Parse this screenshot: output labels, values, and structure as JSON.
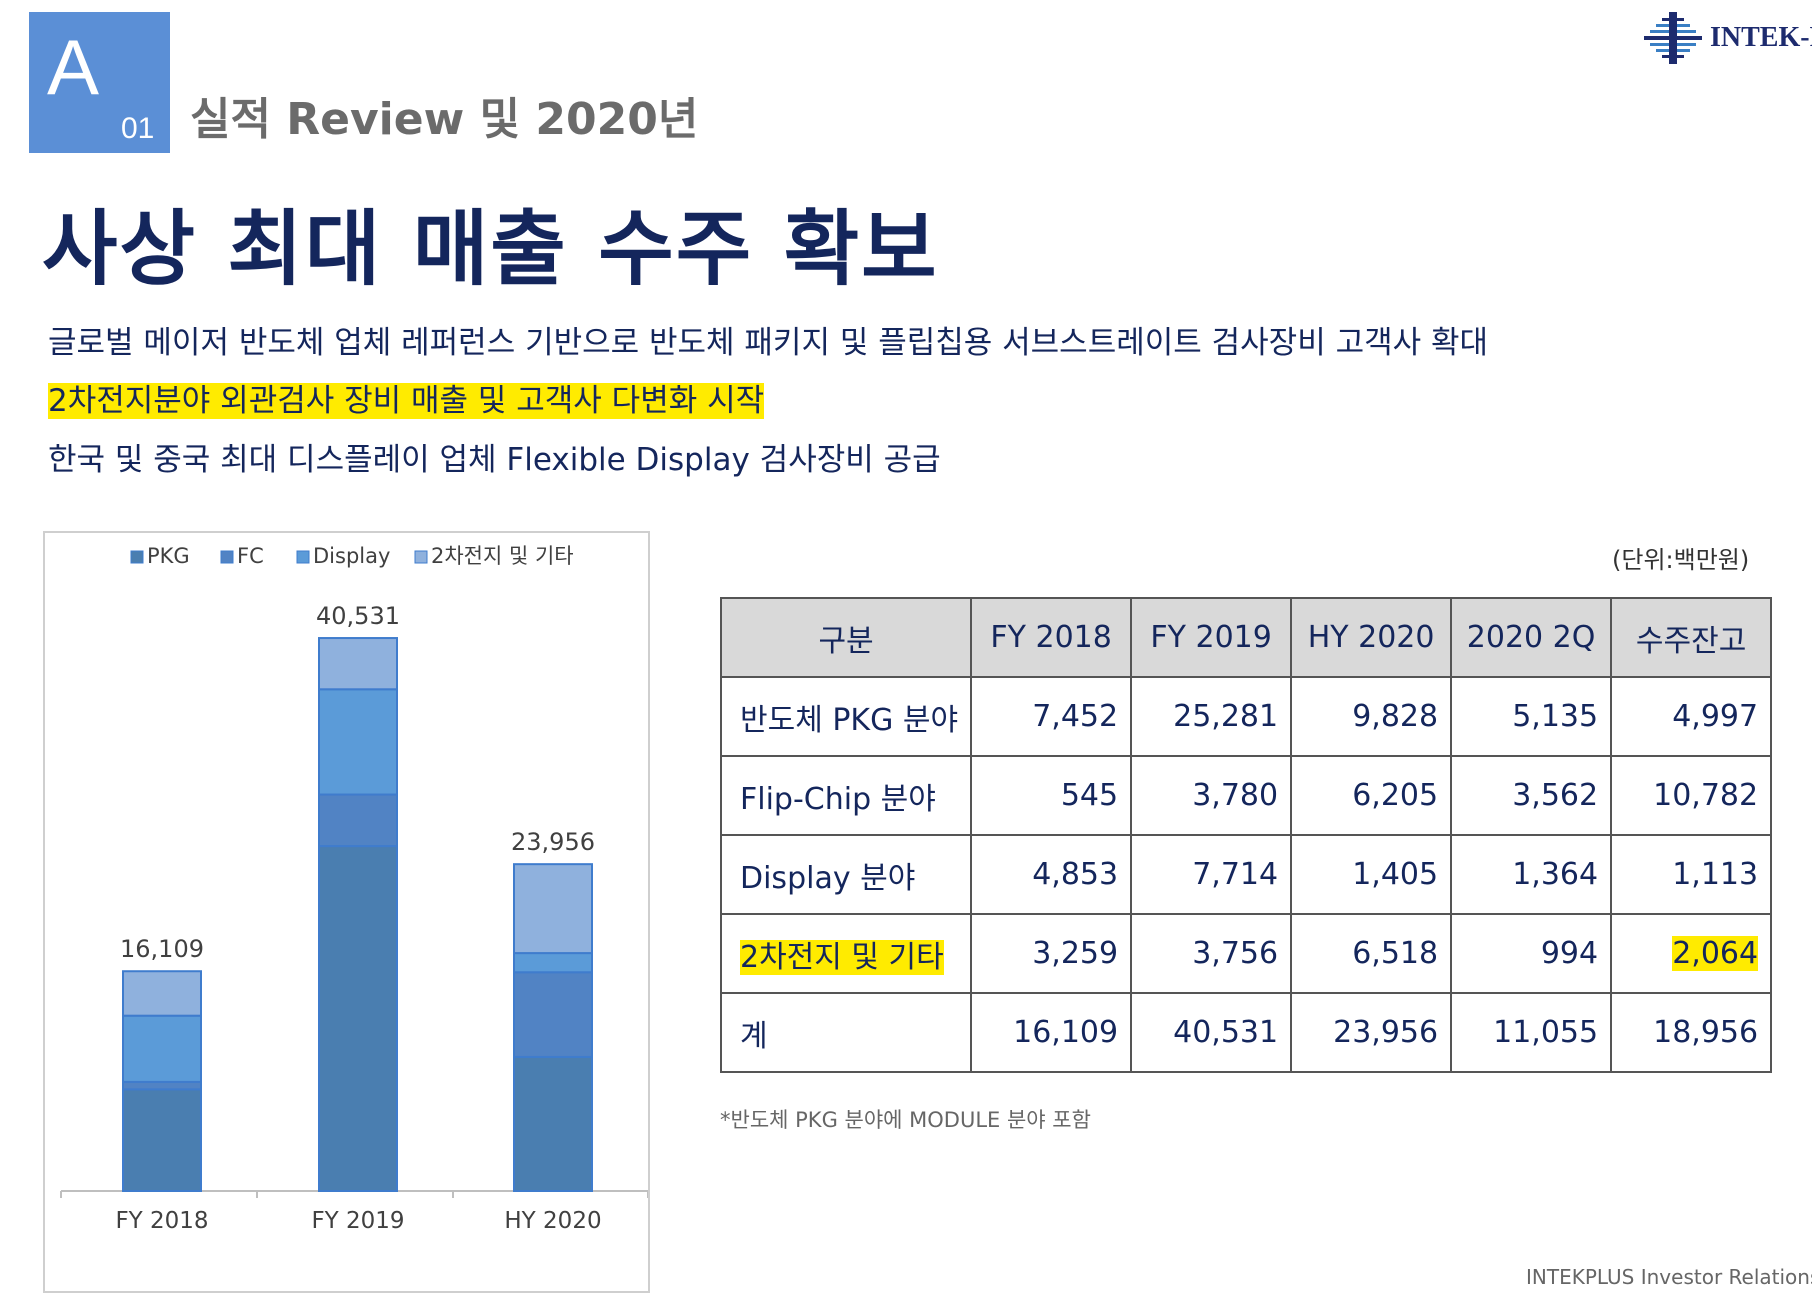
{
  "section": {
    "letter": "A",
    "number": "01",
    "title": "실적 Review 및 2020년"
  },
  "logo": {
    "text": "INTEK-P"
  },
  "headline": "사상 최대 매출 수주 확보",
  "bullets": [
    "글로벌 메이저 반도체 업체 레퍼런스 기반으로 반도체 패키지 및 플립칩용 서브스트레이트 검사장비 고객사 확대",
    "2차전지분야 외관검사 장비 매출 및 고객사 다변화 시작",
    "한국 및 중국 최대 디스플레이 업체 Flexible Display 검사장비 공급"
  ],
  "colors": {
    "pkg": "#4a7eb0",
    "fc": "#5183c4",
    "display": "#5b9bd8",
    "other": "#8fb1dd",
    "highlight": "#ffeb00",
    "navy": "#14265c"
  },
  "chart_data": {
    "type": "bar",
    "stacked": true,
    "categories": [
      "FY 2018",
      "FY 2019",
      "HY 2020"
    ],
    "series": [
      {
        "name": "PKG",
        "values": [
          7452,
          25281,
          9828
        ]
      },
      {
        "name": "FC",
        "values": [
          545,
          3780,
          6205
        ]
      },
      {
        "name": "Display",
        "values": [
          4853,
          7714,
          1405
        ]
      },
      {
        "name": "2차전지 및 기타",
        "values": [
          3259,
          3756,
          6518
        ]
      }
    ],
    "totals": [
      "16,109",
      "40,531",
      "23,956"
    ],
    "ylim": [
      0,
      42000
    ],
    "legend_position": "top",
    "grid": false
  },
  "table": {
    "unit": "(단위:백만원)",
    "headers": [
      "구분",
      "FY 2018",
      "FY 2019",
      "HY 2020",
      "2020 2Q",
      "수주잔고"
    ],
    "rows": [
      {
        "label": "반도체 PKG 분야",
        "values": [
          "7,452",
          "25,281",
          "9,828",
          "5,135",
          "4,997"
        ]
      },
      {
        "label": "Flip-Chip 분야",
        "values": [
          "545",
          "3,780",
          "6,205",
          "3,562",
          "10,782"
        ]
      },
      {
        "label": "Display 분야",
        "values": [
          "4,853",
          "7,714",
          "1,405",
          "1,364",
          "1,113"
        ]
      },
      {
        "label": "2차전지 및 기타",
        "values": [
          "3,259",
          "3,756",
          "6,518",
          "994",
          "2,064"
        ]
      },
      {
        "label": "계",
        "values": [
          "16,109",
          "40,531",
          "23,956",
          "11,055",
          "18,956"
        ]
      }
    ],
    "footnote": "*반도체 PKG 분야에 MODULE 분야 포함"
  },
  "footer": "INTEKPLUS Investor Relations"
}
